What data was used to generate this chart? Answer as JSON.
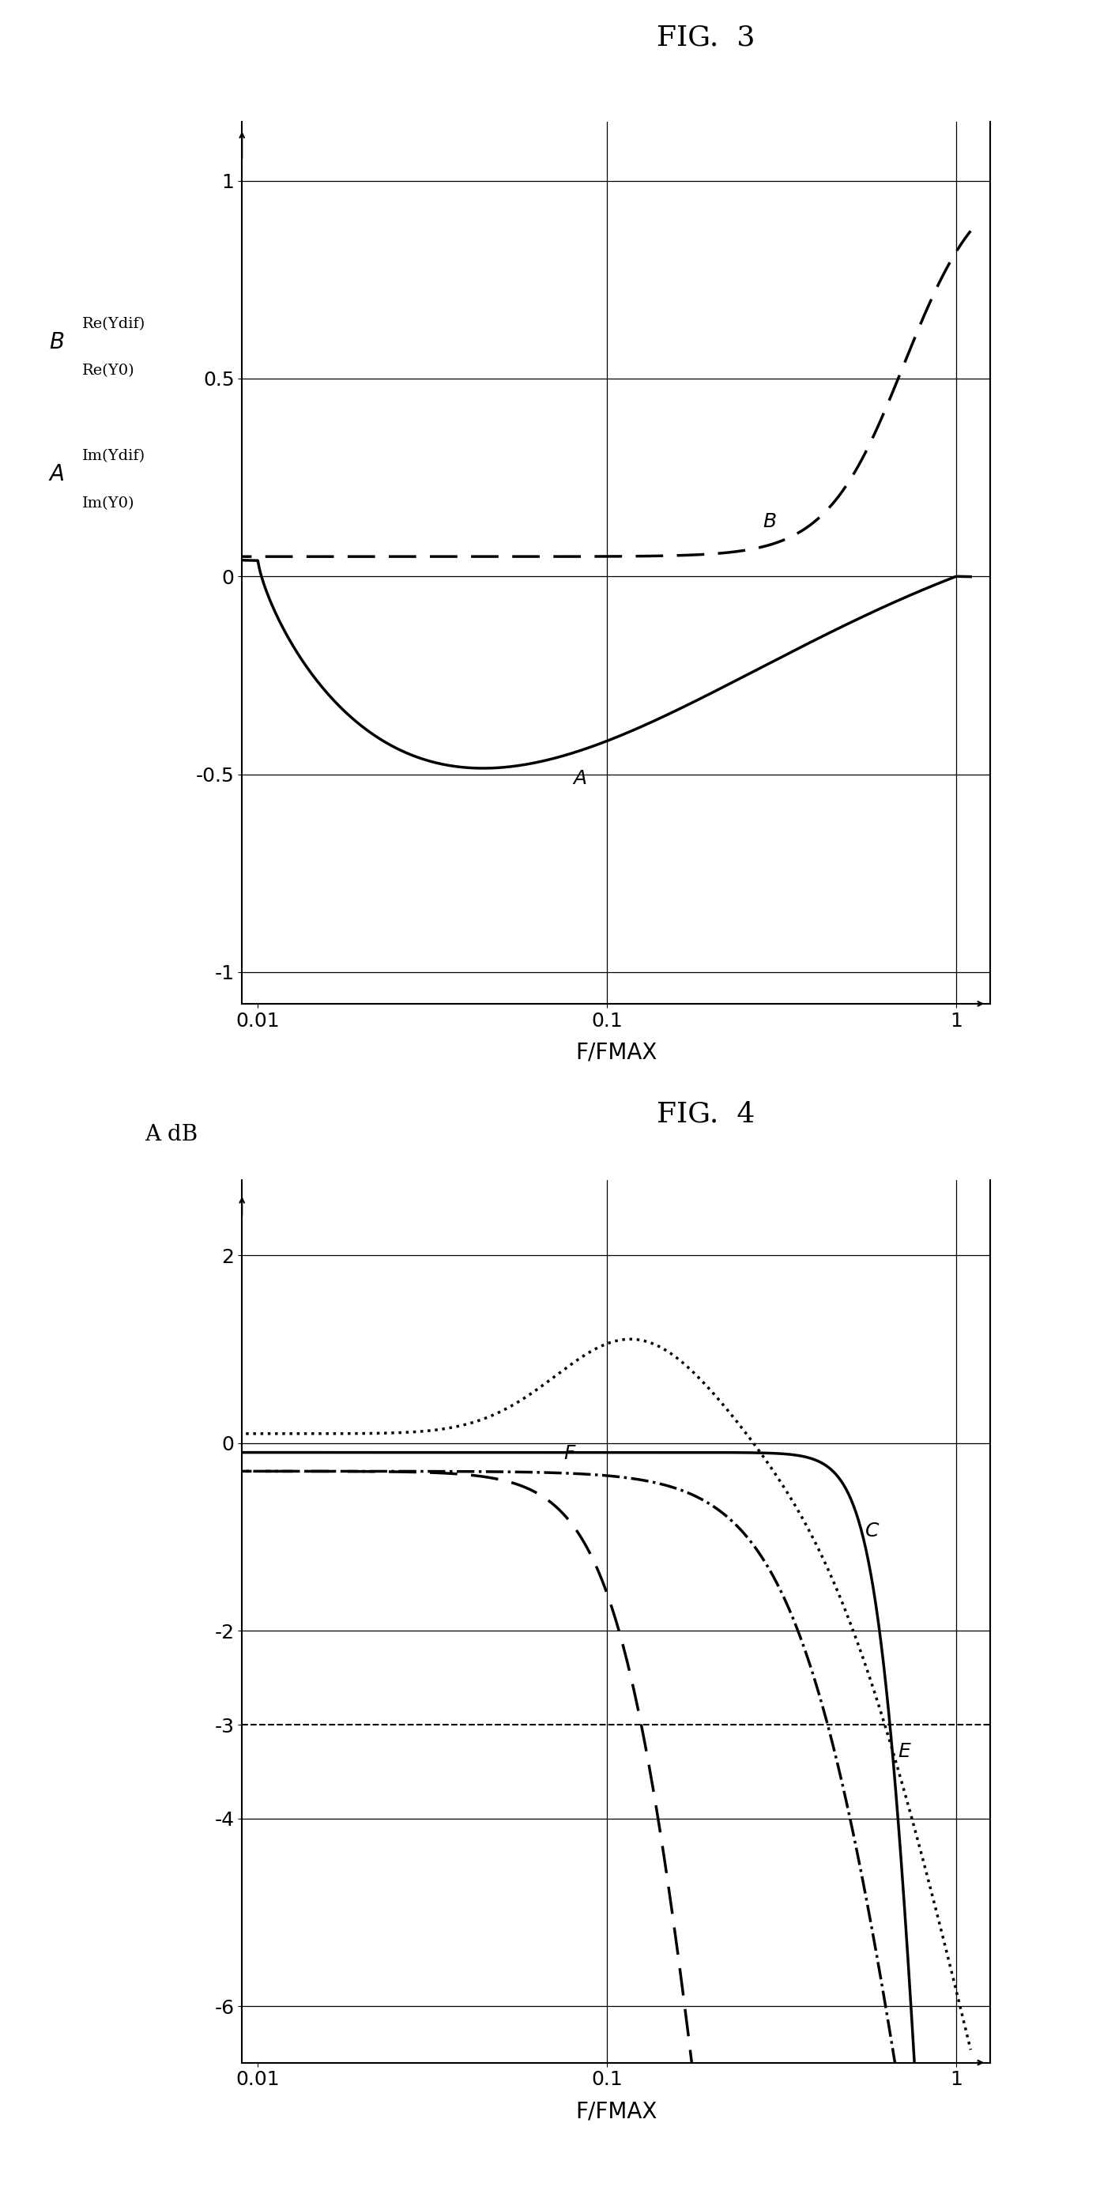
{
  "fig3_title": "FIG.  3",
  "fig4_title": "FIG.  4",
  "fig3_xlabel": "F/FMAX",
  "fig4_xlabel": "F/FMAX",
  "fig4_ylabel": "A dB",
  "background_color": "#ffffff",
  "line_color": "#000000",
  "fig3_yticks": [
    -1,
    -0.5,
    0,
    0.5,
    1
  ],
  "fig4_yticks": [
    -6,
    -4,
    -3,
    -2,
    0,
    2
  ],
  "fig3_xlim": [
    0.009,
    1.25
  ],
  "fig4_xlim": [
    0.009,
    1.25
  ],
  "fig3_ylim": [
    -1.08,
    1.15
  ],
  "fig4_ylim": [
    -6.6,
    2.8
  ],
  "lw": 2.5
}
